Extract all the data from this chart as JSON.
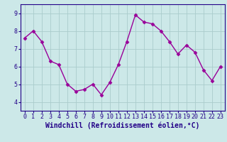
{
  "x": [
    0,
    1,
    2,
    3,
    4,
    5,
    6,
    7,
    8,
    9,
    10,
    11,
    12,
    13,
    14,
    15,
    16,
    17,
    18,
    19,
    20,
    21,
    22,
    23
  ],
  "y": [
    7.6,
    8.0,
    7.4,
    6.3,
    6.1,
    5.0,
    4.6,
    4.7,
    5.0,
    4.4,
    5.1,
    6.1,
    7.4,
    8.9,
    8.5,
    8.4,
    8.0,
    7.4,
    6.7,
    7.2,
    6.8,
    5.8,
    5.2,
    6.0
  ],
  "line_color": "#990099",
  "marker": "D",
  "marker_size": 2.5,
  "bg_color": "#cce8e8",
  "grid_color": "#aacccc",
  "xlim": [
    -0.5,
    23.5
  ],
  "ylim": [
    3.5,
    9.5
  ],
  "yticks": [
    4,
    5,
    6,
    7,
    8,
    9
  ],
  "xticks": [
    0,
    1,
    2,
    3,
    4,
    5,
    6,
    7,
    8,
    9,
    10,
    11,
    12,
    13,
    14,
    15,
    16,
    17,
    18,
    19,
    20,
    21,
    22,
    23
  ],
  "xlabel": "Windchill (Refroidissement éolien,°C)",
  "xlabel_color": "#220088",
  "tick_color": "#220088",
  "axis_color": "#220088",
  "line_width": 1.0,
  "font_size": 6.5,
  "xlabel_fontsize": 7.0,
  "tick_fontsize": 6.0
}
